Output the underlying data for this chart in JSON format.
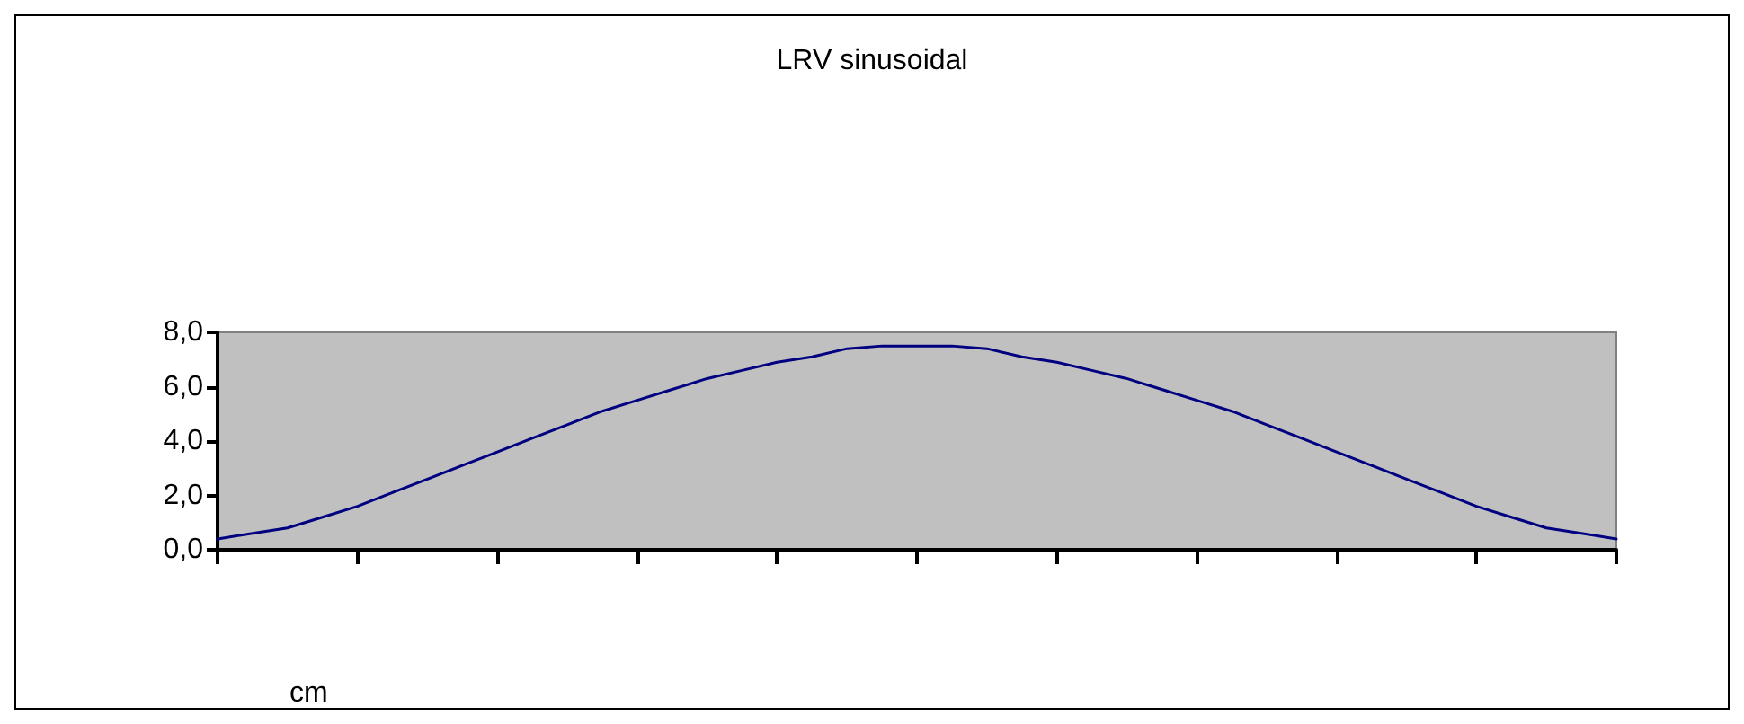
{
  "chart_data": {
    "type": "line",
    "title": "LRV sinusoidal",
    "xlabel": "cm",
    "categories": [
      null,
      null,
      null,
      null,
      null,
      null,
      null,
      null,
      null,
      null,
      null,
      null,
      null,
      null,
      null,
      null,
      null,
      null,
      null,
      null,
      null,
      null,
      null,
      null,
      null,
      null,
      null,
      null,
      null,
      null,
      null,
      null,
      null,
      null,
      null,
      null,
      null,
      null,
      null,
      null,
      null
    ],
    "series": [
      {
        "color": "#000080",
        "values": [
          0.4,
          0.6,
          0.8,
          1.2,
          1.6,
          2.1,
          2.6,
          3.1,
          3.6,
          4.1,
          4.6,
          5.1,
          5.5,
          5.9,
          6.3,
          6.6,
          6.9,
          7.1,
          7.4,
          7.5,
          7.5,
          7.5,
          7.4,
          7.1,
          6.9,
          6.6,
          6.3,
          5.9,
          5.5,
          5.1,
          4.6,
          4.1,
          3.6,
          3.1,
          2.6,
          2.1,
          1.6,
          1.2,
          0.8,
          0.6,
          0.4
        ]
      }
    ],
    "ylim": [
      0,
      8
    ],
    "yticks": [
      {
        "value": 0,
        "label": "0,0"
      },
      {
        "value": 2,
        "label": "2,0"
      },
      {
        "value": 4,
        "label": "4,0"
      },
      {
        "value": 6,
        "label": "6,0"
      },
      {
        "value": 8,
        "label": "8,0"
      }
    ],
    "tick_labels": "y",
    "grid": false,
    "marker": "none",
    "line_style": "solid"
  }
}
